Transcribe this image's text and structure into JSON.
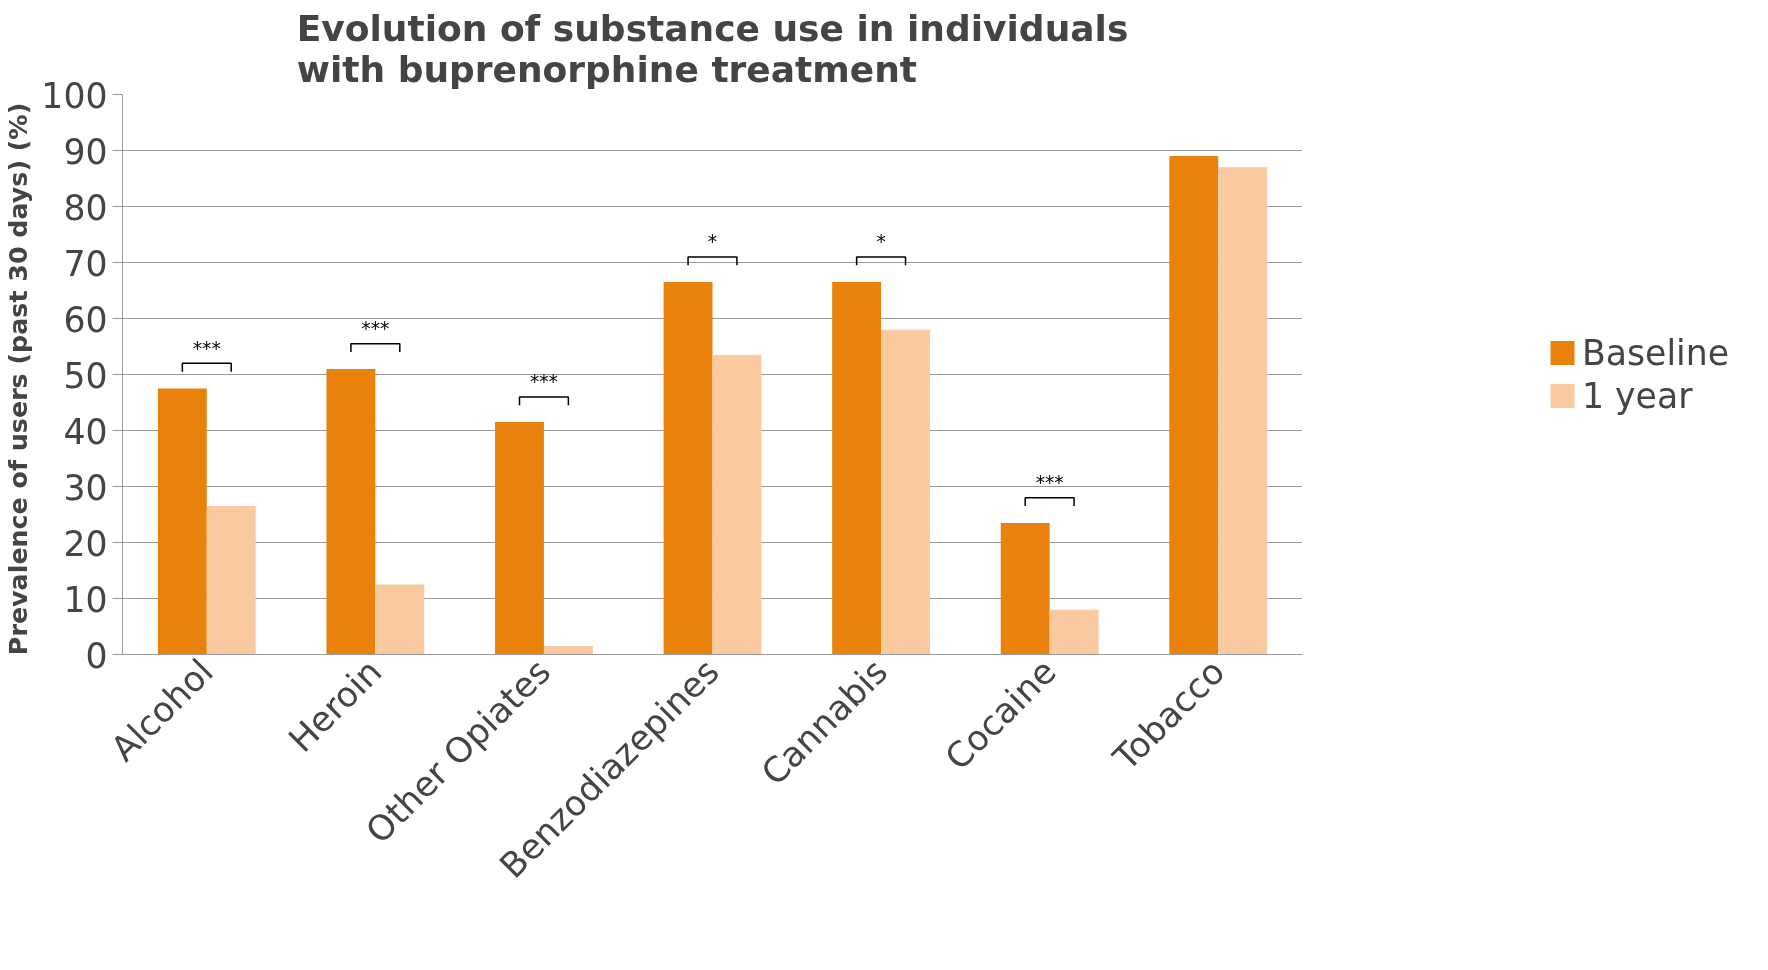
{
  "chart_data": {
    "type": "bar",
    "title": "Evolution of substance use in individuals with buprenorphine treatment",
    "ylabel": "Prevalence of users  (past 30 days) (%)",
    "categories": [
      "Alcohol",
      "Heroin",
      "Other Opiates",
      "Benzodiazepines",
      "Cannabis",
      "Cocaine",
      "Tobacco"
    ],
    "series": [
      {
        "name": "Baseline",
        "color": "#e8820c",
        "values": [
          47.5,
          51,
          41.5,
          66.5,
          66.5,
          23.5,
          89
        ]
      },
      {
        "name": "1 year",
        "color": "#f9c9a0",
        "values": [
          26.5,
          12.5,
          1.5,
          53.5,
          58,
          8,
          87
        ]
      }
    ],
    "ylim": [
      0,
      100
    ],
    "yticks": [
      0,
      10,
      20,
      30,
      40,
      50,
      60,
      70,
      80,
      90,
      100
    ],
    "grid": "y",
    "legend": "right",
    "annotations": [
      "***",
      "***",
      "***",
      "*",
      "*",
      "***"
    ]
  }
}
